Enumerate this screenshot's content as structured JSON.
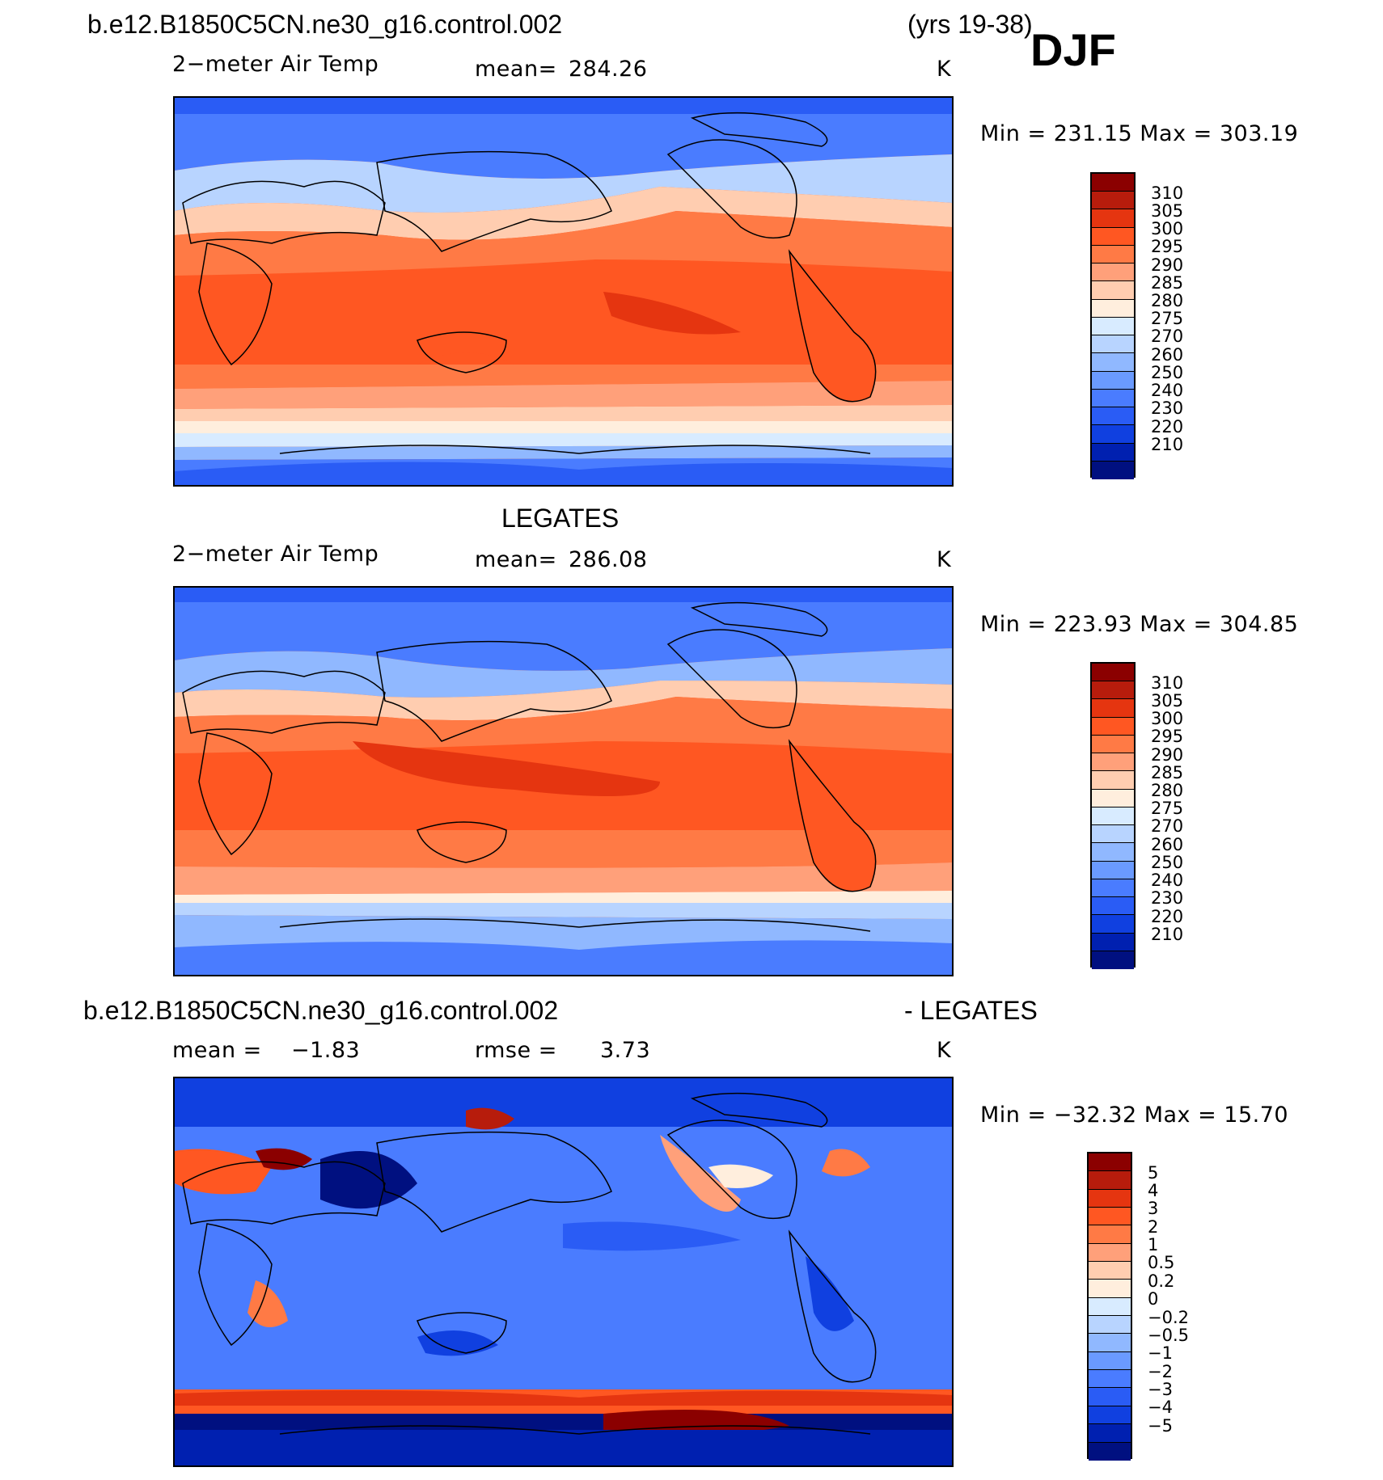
{
  "header": {
    "case_name": "b.e12.B1850C5CN.ne30_g16.control.002",
    "years": "(yrs 19-38)",
    "season": "DJF"
  },
  "panels": [
    {
      "id": "model",
      "title": "",
      "variable": "2−meter Air Temp",
      "stat_label": "mean=",
      "stat_value": "284.26",
      "units": "K",
      "minmax": "Min = 231.15 Max = 303.19",
      "palette": [
        "#8b0000",
        "#b71c0c",
        "#e53510",
        "#ff5722",
        "#ff7a45",
        "#ffa07a",
        "#ffcdb0",
        "#ffeedd",
        "#d8ebff",
        "#b8d4ff",
        "#90b8ff",
        "#6a9aff",
        "#4a7cff",
        "#2a5cf5",
        "#1040e0",
        "#0020b0",
        "#001080"
      ],
      "levels": [
        "310",
        "305",
        "300",
        "295",
        "290",
        "285",
        "280",
        "275",
        "270",
        "260",
        "250",
        "240",
        "230",
        "220",
        "210"
      ]
    },
    {
      "id": "obs",
      "title": "LEGATES",
      "variable": "2−meter Air Temp",
      "stat_label": "mean=",
      "stat_value": "286.08",
      "units": "K",
      "minmax": "Min = 223.93 Max = 304.85",
      "palette": [
        "#8b0000",
        "#b71c0c",
        "#e53510",
        "#ff5722",
        "#ff7a45",
        "#ffa07a",
        "#ffcdb0",
        "#ffeedd",
        "#d8ebff",
        "#b8d4ff",
        "#90b8ff",
        "#6a9aff",
        "#4a7cff",
        "#2a5cf5",
        "#1040e0",
        "#0020b0",
        "#001080"
      ],
      "levels": [
        "310",
        "305",
        "300",
        "295",
        "290",
        "285",
        "280",
        "275",
        "270",
        "260",
        "250",
        "240",
        "230",
        "220",
        "210"
      ]
    },
    {
      "id": "diff",
      "title_left": "b.e12.B1850C5CN.ne30_g16.control.002",
      "title_right": "- LEGATES",
      "mean_label": "mean =",
      "mean_value": "−1.83",
      "rmse_label": "rmse =",
      "rmse_value": "3.73",
      "units": "K",
      "minmax": "Min = −32.32 Max =   15.70",
      "palette": [
        "#8b0000",
        "#b71c0c",
        "#e53510",
        "#ff5722",
        "#ff7a45",
        "#ffa07a",
        "#ffcdb0",
        "#ffeedd",
        "#d8ebff",
        "#b8d4ff",
        "#90b8ff",
        "#6a9aff",
        "#4a7cff",
        "#2a5cf5",
        "#1040e0",
        "#0020b0",
        "#001080"
      ],
      "levels": [
        "5",
        "4",
        "3",
        "2",
        "1",
        "0.5",
        "0.2",
        "0",
        "−0.2",
        "−0.5",
        "−1",
        "−2",
        "−3",
        "−4",
        "−5"
      ]
    }
  ]
}
